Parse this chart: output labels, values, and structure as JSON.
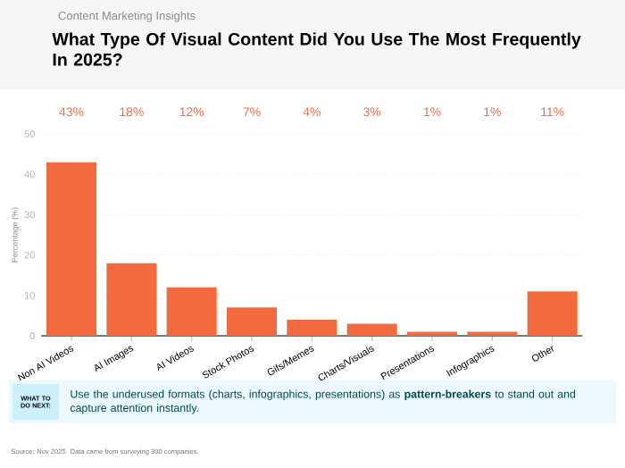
{
  "chart_data": {
    "type": "bar",
    "subtitle": "Content Marketing Insights",
    "title": "What Type Of Visual Content Did You Use The Most Frequently In 2025?",
    "ylabel": "Percentage (%)",
    "categories": [
      "Non AI Videos",
      "AI Images",
      "AI Videos",
      "Stock Photos",
      "Gifs/Memes",
      "Charts/Visuals",
      "Presentations",
      "Infographics",
      "Other"
    ],
    "values": [
      43,
      18,
      12,
      7,
      4,
      3,
      1,
      1,
      11
    ],
    "value_labels": [
      "43%",
      "18%",
      "12%",
      "7%",
      "4%",
      "3%",
      "1%",
      "1%",
      "11%"
    ],
    "color": "#f26a3e",
    "ylim": [
      0,
      50
    ],
    "yticks": [
      0,
      10,
      20,
      30,
      40,
      50
    ],
    "grid": "y",
    "annotations": [
      "WHAT TO DO NEXT:",
      "Use the underused formats (charts, infographics, presentations) as **pattern-breakers** to stand out and capture attention instantly.",
      "Source: Nov 2025. Data came from surveying 300 companies."
    ]
  }
}
